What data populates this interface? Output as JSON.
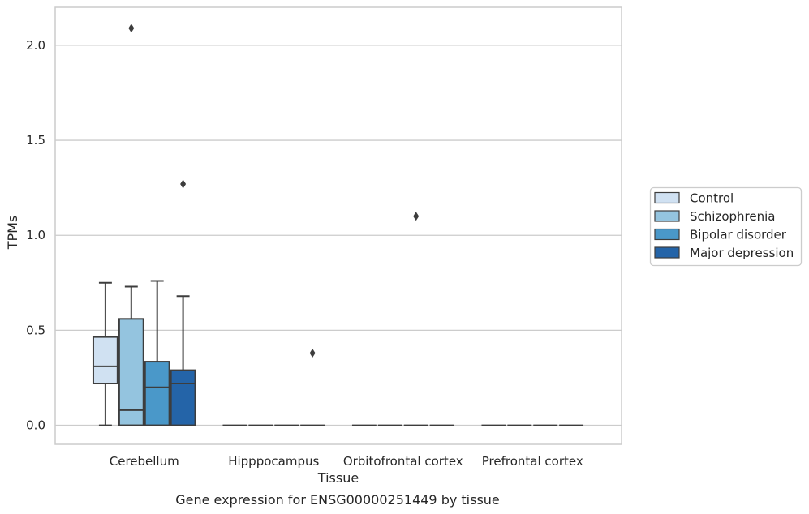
{
  "chart_data": {
    "type": "box",
    "title": "",
    "xlabel": "Tissue",
    "ylabel": "TPMs",
    "caption": "Gene expression for ENSG00000251449 by tissue",
    "ylim": [
      -0.1,
      2.2
    ],
    "yticks": [
      0.0,
      0.5,
      1.0,
      1.5,
      2.0
    ],
    "ytick_labels": [
      "0.0",
      "0.5",
      "1.0",
      "1.5",
      "2.0"
    ],
    "categories": [
      "Cerebellum",
      "Hipppocampus",
      "Orbitofrontal cortex",
      "Prefrontal cortex"
    ],
    "grid": "horizontal",
    "legend_position": "right",
    "series": [
      {
        "name": "Control",
        "color": "#d0e1f2",
        "boxes": [
          {
            "whislo": 0.0,
            "q1": 0.22,
            "med": 0.31,
            "q3": 0.465,
            "whishi": 0.75,
            "fliers": []
          },
          {
            "whislo": 0.0,
            "q1": 0.0,
            "med": 0.0,
            "q3": 0.0,
            "whishi": 0.0,
            "fliers": []
          },
          {
            "whislo": 0.0,
            "q1": 0.0,
            "med": 0.0,
            "q3": 0.0,
            "whishi": 0.0,
            "fliers": []
          },
          {
            "whislo": 0.0,
            "q1": 0.0,
            "med": 0.0,
            "q3": 0.0,
            "whishi": 0.0,
            "fliers": []
          }
        ]
      },
      {
        "name": "Schizophrenia",
        "color": "#94c4df",
        "boxes": [
          {
            "whislo": 0.0,
            "q1": 0.0,
            "med": 0.08,
            "q3": 0.56,
            "whishi": 0.73,
            "fliers": [
              2.09
            ]
          },
          {
            "whislo": 0.0,
            "q1": 0.0,
            "med": 0.0,
            "q3": 0.0,
            "whishi": 0.0,
            "fliers": []
          },
          {
            "whislo": 0.0,
            "q1": 0.0,
            "med": 0.0,
            "q3": 0.0,
            "whishi": 0.0,
            "fliers": []
          },
          {
            "whislo": 0.0,
            "q1": 0.0,
            "med": 0.0,
            "q3": 0.0,
            "whishi": 0.0,
            "fliers": []
          }
        ]
      },
      {
        "name": "Bipolar disorder",
        "color": "#4a98c9",
        "boxes": [
          {
            "whislo": 0.0,
            "q1": 0.0,
            "med": 0.2,
            "q3": 0.335,
            "whishi": 0.76,
            "fliers": []
          },
          {
            "whislo": 0.0,
            "q1": 0.0,
            "med": 0.0,
            "q3": 0.0,
            "whishi": 0.0,
            "fliers": []
          },
          {
            "whislo": 0.0,
            "q1": 0.0,
            "med": 0.0,
            "q3": 0.0,
            "whishi": 0.0,
            "fliers": [
              1.1
            ]
          },
          {
            "whislo": 0.0,
            "q1": 0.0,
            "med": 0.0,
            "q3": 0.0,
            "whishi": 0.0,
            "fliers": []
          }
        ]
      },
      {
        "name": "Major depression",
        "color": "#2464a8",
        "boxes": [
          {
            "whislo": 0.0,
            "q1": 0.0,
            "med": 0.22,
            "q3": 0.29,
            "whishi": 0.68,
            "fliers": [
              1.27
            ]
          },
          {
            "whislo": 0.0,
            "q1": 0.0,
            "med": 0.0,
            "q3": 0.0,
            "whishi": 0.0,
            "fliers": [
              0.38
            ]
          },
          {
            "whislo": 0.0,
            "q1": 0.0,
            "med": 0.0,
            "q3": 0.0,
            "whishi": 0.0,
            "fliers": []
          },
          {
            "whislo": 0.0,
            "q1": 0.0,
            "med": 0.0,
            "q3": 0.0,
            "whishi": 0.0,
            "fliers": []
          }
        ]
      }
    ]
  }
}
